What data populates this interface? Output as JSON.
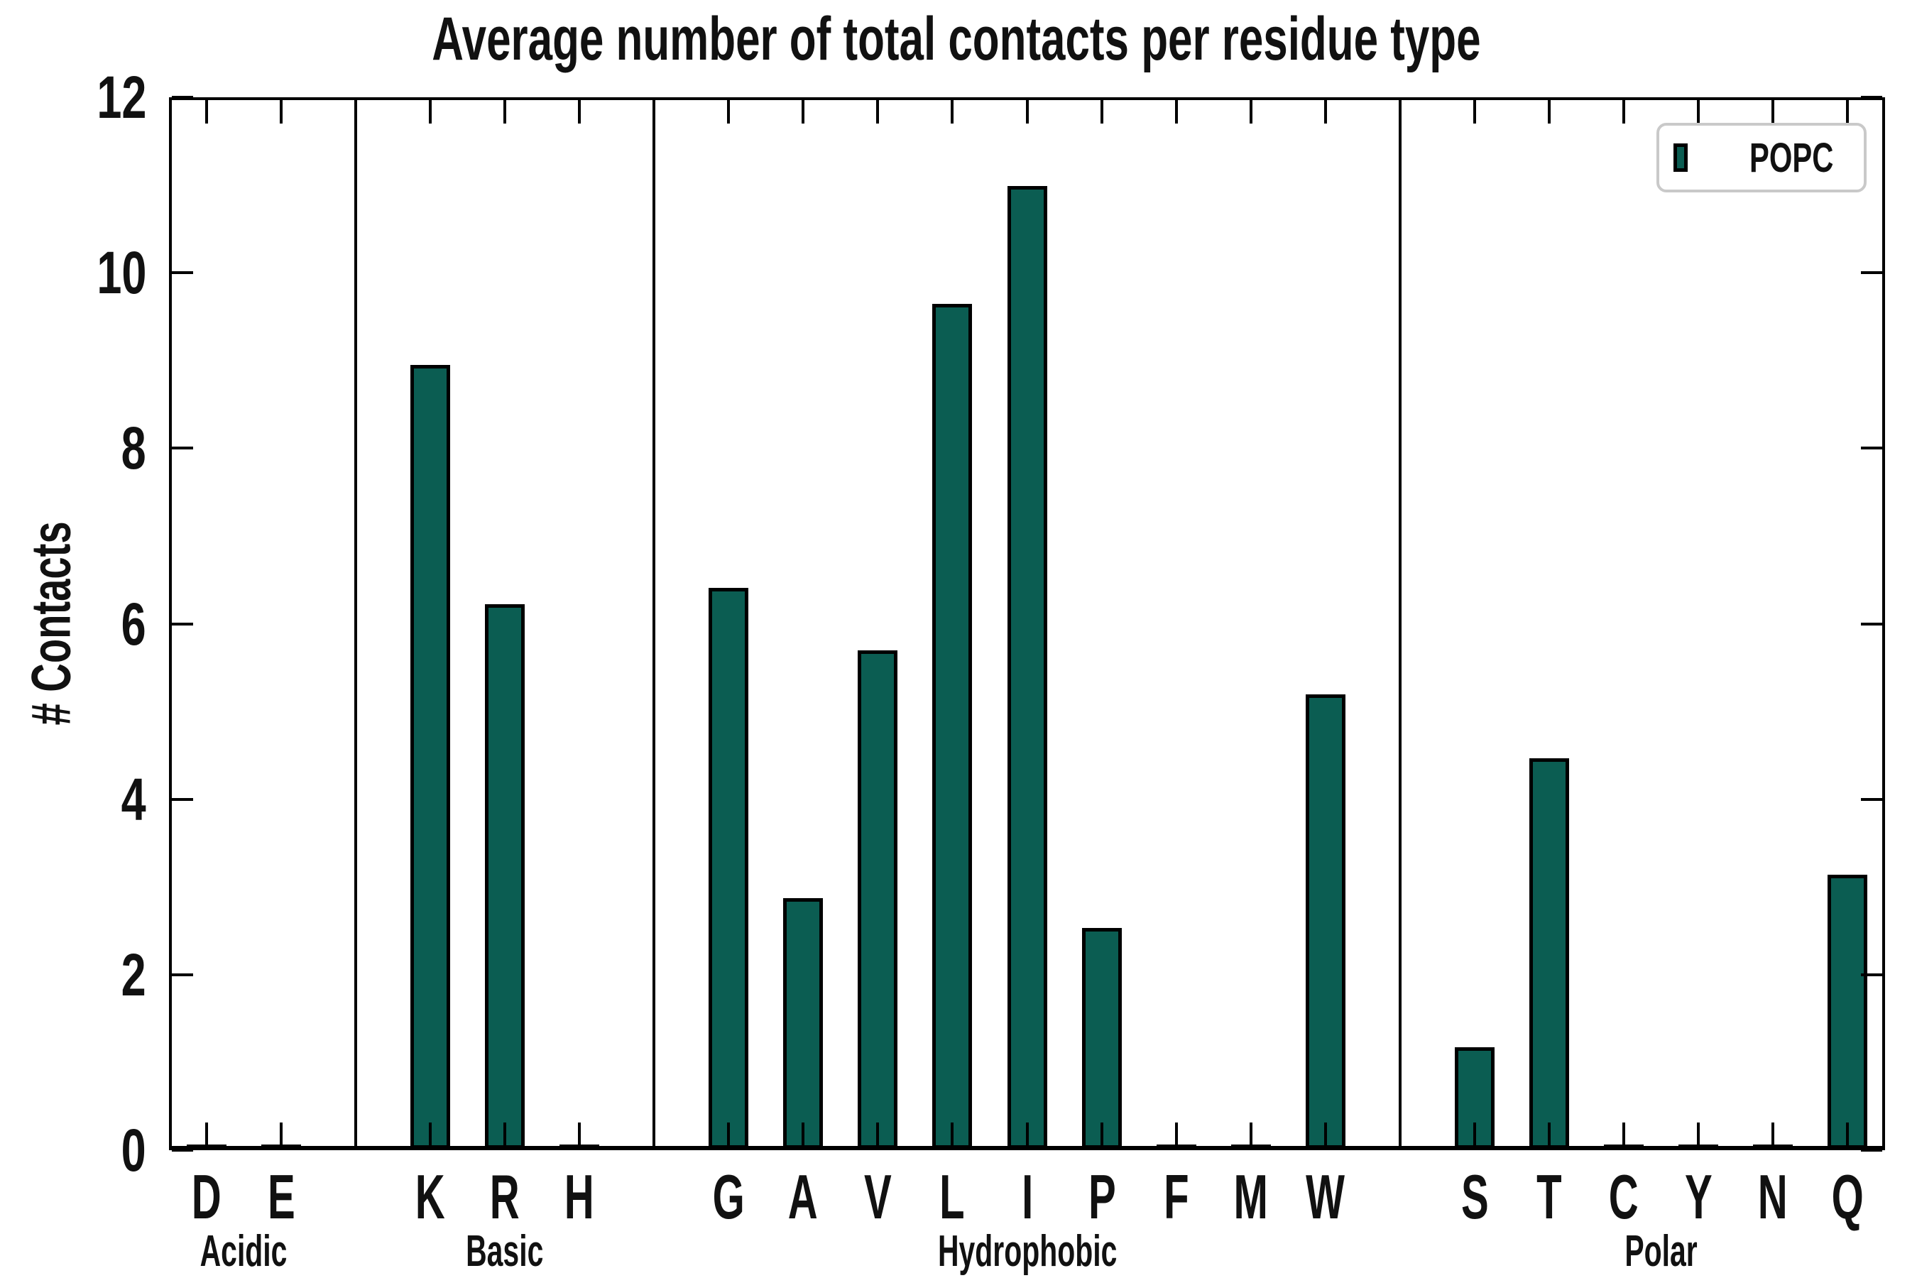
{
  "chart_data": {
    "type": "bar",
    "title": "Average number of total contacts per residue type",
    "xlabel": "",
    "ylabel": "# Contacts",
    "ylim": [
      0,
      12
    ],
    "yticks": [
      0,
      2,
      4,
      6,
      8,
      10,
      12
    ],
    "yticklabels": [
      "0",
      "2",
      "4",
      "6",
      "8",
      "10",
      "12"
    ],
    "grid": false,
    "tick_direction": "in",
    "bar_color": "#0b5d52",
    "bar_edge_color": "#000000",
    "separator_color": "#000000",
    "legend": {
      "position": "upper right",
      "entries": [
        {
          "label": "POPC",
          "color": "#0b5d52"
        }
      ]
    },
    "groups": [
      {
        "label": "Acidic",
        "categories": [
          "D",
          "E"
        ],
        "values": [
          0.03,
          0.03
        ]
      },
      {
        "label": "Basic",
        "categories": [
          "K",
          "R",
          "H"
        ],
        "values": [
          8.93,
          6.21,
          0.03
        ]
      },
      {
        "label": "Hydrophobic",
        "categories": [
          "G",
          "A",
          "V",
          "L",
          "I",
          "P",
          "F",
          "M",
          "W"
        ],
        "values": [
          6.39,
          2.86,
          5.68,
          9.63,
          10.97,
          2.52,
          0.03,
          0.03,
          5.18
        ]
      },
      {
        "label": "Polar",
        "categories": [
          "S",
          "T",
          "C",
          "Y",
          "N",
          "Q"
        ],
        "values": [
          1.16,
          4.45,
          0.03,
          0.03,
          0.03,
          3.12
        ]
      }
    ]
  }
}
